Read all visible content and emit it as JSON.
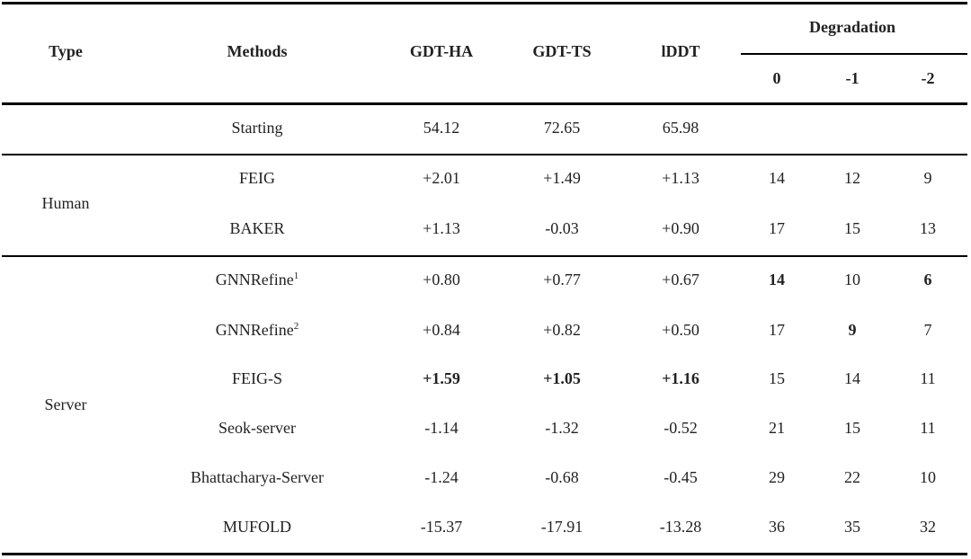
{
  "header": {
    "type": "Type",
    "methods": "Methods",
    "gdt_ha": "GDT-HA",
    "gdt_ts": "GDT-TS",
    "lddt": "lDDT",
    "degradation": "Degradation",
    "deg_0": "0",
    "deg_1": "-1",
    "deg_2": "-2"
  },
  "starting": {
    "method": "Starting",
    "gdt_ha": "54.12",
    "gdt_ts": "72.65",
    "lddt": "65.98"
  },
  "groups": {
    "human": "Human",
    "server": "Server"
  },
  "rows": [
    {
      "method": "FEIG",
      "sup": "",
      "gdt_ha": "+2.01",
      "gdt_ts": "+1.49",
      "lddt": "+1.13",
      "d0": "14",
      "d1": "12",
      "d2": "9"
    },
    {
      "method": "BAKER",
      "sup": "",
      "gdt_ha": "+1.13",
      "gdt_ts": "-0.03",
      "lddt": "+0.90",
      "d0": "17",
      "d1": "15",
      "d2": "13"
    },
    {
      "method": "GNNRefine",
      "sup": "1",
      "gdt_ha": "+0.80",
      "gdt_ts": "+0.77",
      "lddt": "+0.67",
      "d0": "14",
      "d1": "10",
      "d2": "6"
    },
    {
      "method": "GNNRefine",
      "sup": "2",
      "gdt_ha": "+0.84",
      "gdt_ts": "+0.82",
      "lddt": "+0.50",
      "d0": "17",
      "d1": "9",
      "d2": "7"
    },
    {
      "method": "FEIG-S",
      "sup": "",
      "gdt_ha": "+1.59",
      "gdt_ts": "+1.05",
      "lddt": "+1.16",
      "d0": "15",
      "d1": "14",
      "d2": "11"
    },
    {
      "method": "Seok-server",
      "sup": "",
      "gdt_ha": "-1.14",
      "gdt_ts": "-1.32",
      "lddt": "-0.52",
      "d0": "21",
      "d1": "15",
      "d2": "11"
    },
    {
      "method": "Bhattacharya-Server",
      "sup": "",
      "gdt_ha": "-1.24",
      "gdt_ts": "-0.68",
      "lddt": "-0.45",
      "d0": "29",
      "d1": "22",
      "d2": "10"
    },
    {
      "method": "MUFOLD",
      "sup": "",
      "gdt_ha": "-15.37",
      "gdt_ts": "-17.91",
      "lddt": "-13.28",
      "d0": "36",
      "d1": "35",
      "d2": "32"
    }
  ]
}
